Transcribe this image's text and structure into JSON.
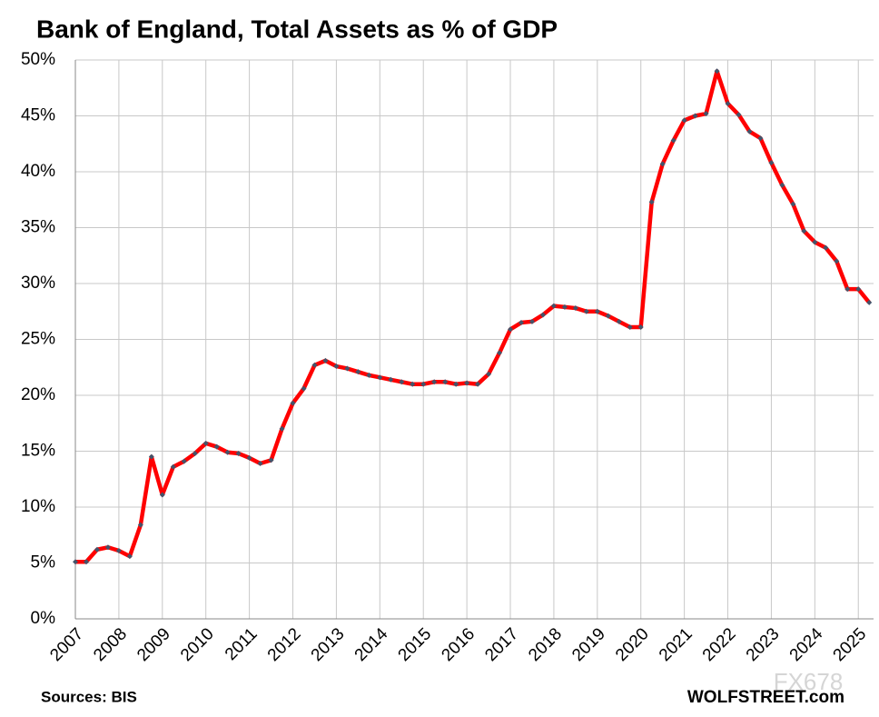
{
  "chart_data": {
    "type": "line",
    "title": "Bank of England, Total Assets as % of GDP",
    "source": "Sources: BIS",
    "credit": "WOLFSTREET.com",
    "watermark": "FX678",
    "x": [
      2007,
      2007.25,
      2007.5,
      2007.75,
      2008,
      2008.25,
      2008.5,
      2008.75,
      2009,
      2009.25,
      2009.5,
      2009.75,
      2010,
      2010.25,
      2010.5,
      2010.75,
      2011,
      2011.25,
      2011.5,
      2011.75,
      2012,
      2012.25,
      2012.5,
      2012.75,
      2013,
      2013.25,
      2013.5,
      2013.75,
      2014,
      2014.25,
      2014.5,
      2014.75,
      2015,
      2015.25,
      2015.5,
      2015.75,
      2016,
      2016.25,
      2016.5,
      2016.75,
      2017,
      2017.25,
      2017.5,
      2017.75,
      2018,
      2018.25,
      2018.5,
      2018.75,
      2019,
      2019.25,
      2019.5,
      2019.75,
      2020,
      2020.25,
      2020.5,
      2020.75,
      2021,
      2021.25,
      2021.5,
      2021.75,
      2022,
      2022.25,
      2022.5,
      2022.75,
      2023,
      2023.25,
      2023.5,
      2023.75,
      2024,
      2024.25,
      2024.5,
      2024.75,
      2025,
      2025.25
    ],
    "series": [
      {
        "color": "#ff0000",
        "marker_color": "#44546a",
        "values": [
          5.1,
          5.1,
          6.2,
          6.4,
          6.1,
          5.6,
          8.4,
          14.5,
          11.1,
          13.6,
          14.1,
          14.8,
          15.7,
          15.4,
          14.9,
          14.8,
          14.4,
          13.9,
          14.2,
          17.0,
          19.3,
          20.6,
          22.7,
          23.1,
          22.6,
          22.4,
          22.1,
          21.8,
          21.6,
          21.4,
          21.2,
          21.0,
          21.0,
          21.2,
          21.2,
          21.0,
          21.1,
          21.0,
          21.9,
          23.8,
          25.9,
          26.5,
          26.6,
          27.2,
          28.0,
          27.9,
          27.8,
          27.5,
          27.5,
          27.1,
          26.6,
          26.1,
          26.1,
          37.3,
          40.7,
          42.8,
          44.6,
          45.0,
          45.2,
          49.0,
          46.1,
          45.1,
          43.6,
          43.0,
          40.8,
          38.8,
          37.1,
          34.7,
          33.7,
          33.2,
          32.0,
          29.5,
          29.5,
          28.3
        ]
      }
    ],
    "xlim": [
      2007,
      2025.35
    ],
    "xticks": [
      2007,
      2008,
      2009,
      2010,
      2011,
      2012,
      2013,
      2014,
      2015,
      2016,
      2017,
      2018,
      2019,
      2020,
      2021,
      2022,
      2023,
      2024,
      2025
    ],
    "ylim": [
      0,
      50
    ],
    "yticks": [
      {
        "value": 0,
        "label": "0%"
      },
      {
        "value": 5,
        "label": "5%"
      },
      {
        "value": 10,
        "label": "10%"
      },
      {
        "value": 15,
        "label": "15%"
      },
      {
        "value": 20,
        "label": "20%"
      },
      {
        "value": 25,
        "label": "25%"
      },
      {
        "value": 30,
        "label": "30%"
      },
      {
        "value": 35,
        "label": "35%"
      },
      {
        "value": 40,
        "label": "40%"
      },
      {
        "value": 45,
        "label": "45%"
      },
      {
        "value": 50,
        "label": "50%"
      }
    ],
    "grid": true
  }
}
